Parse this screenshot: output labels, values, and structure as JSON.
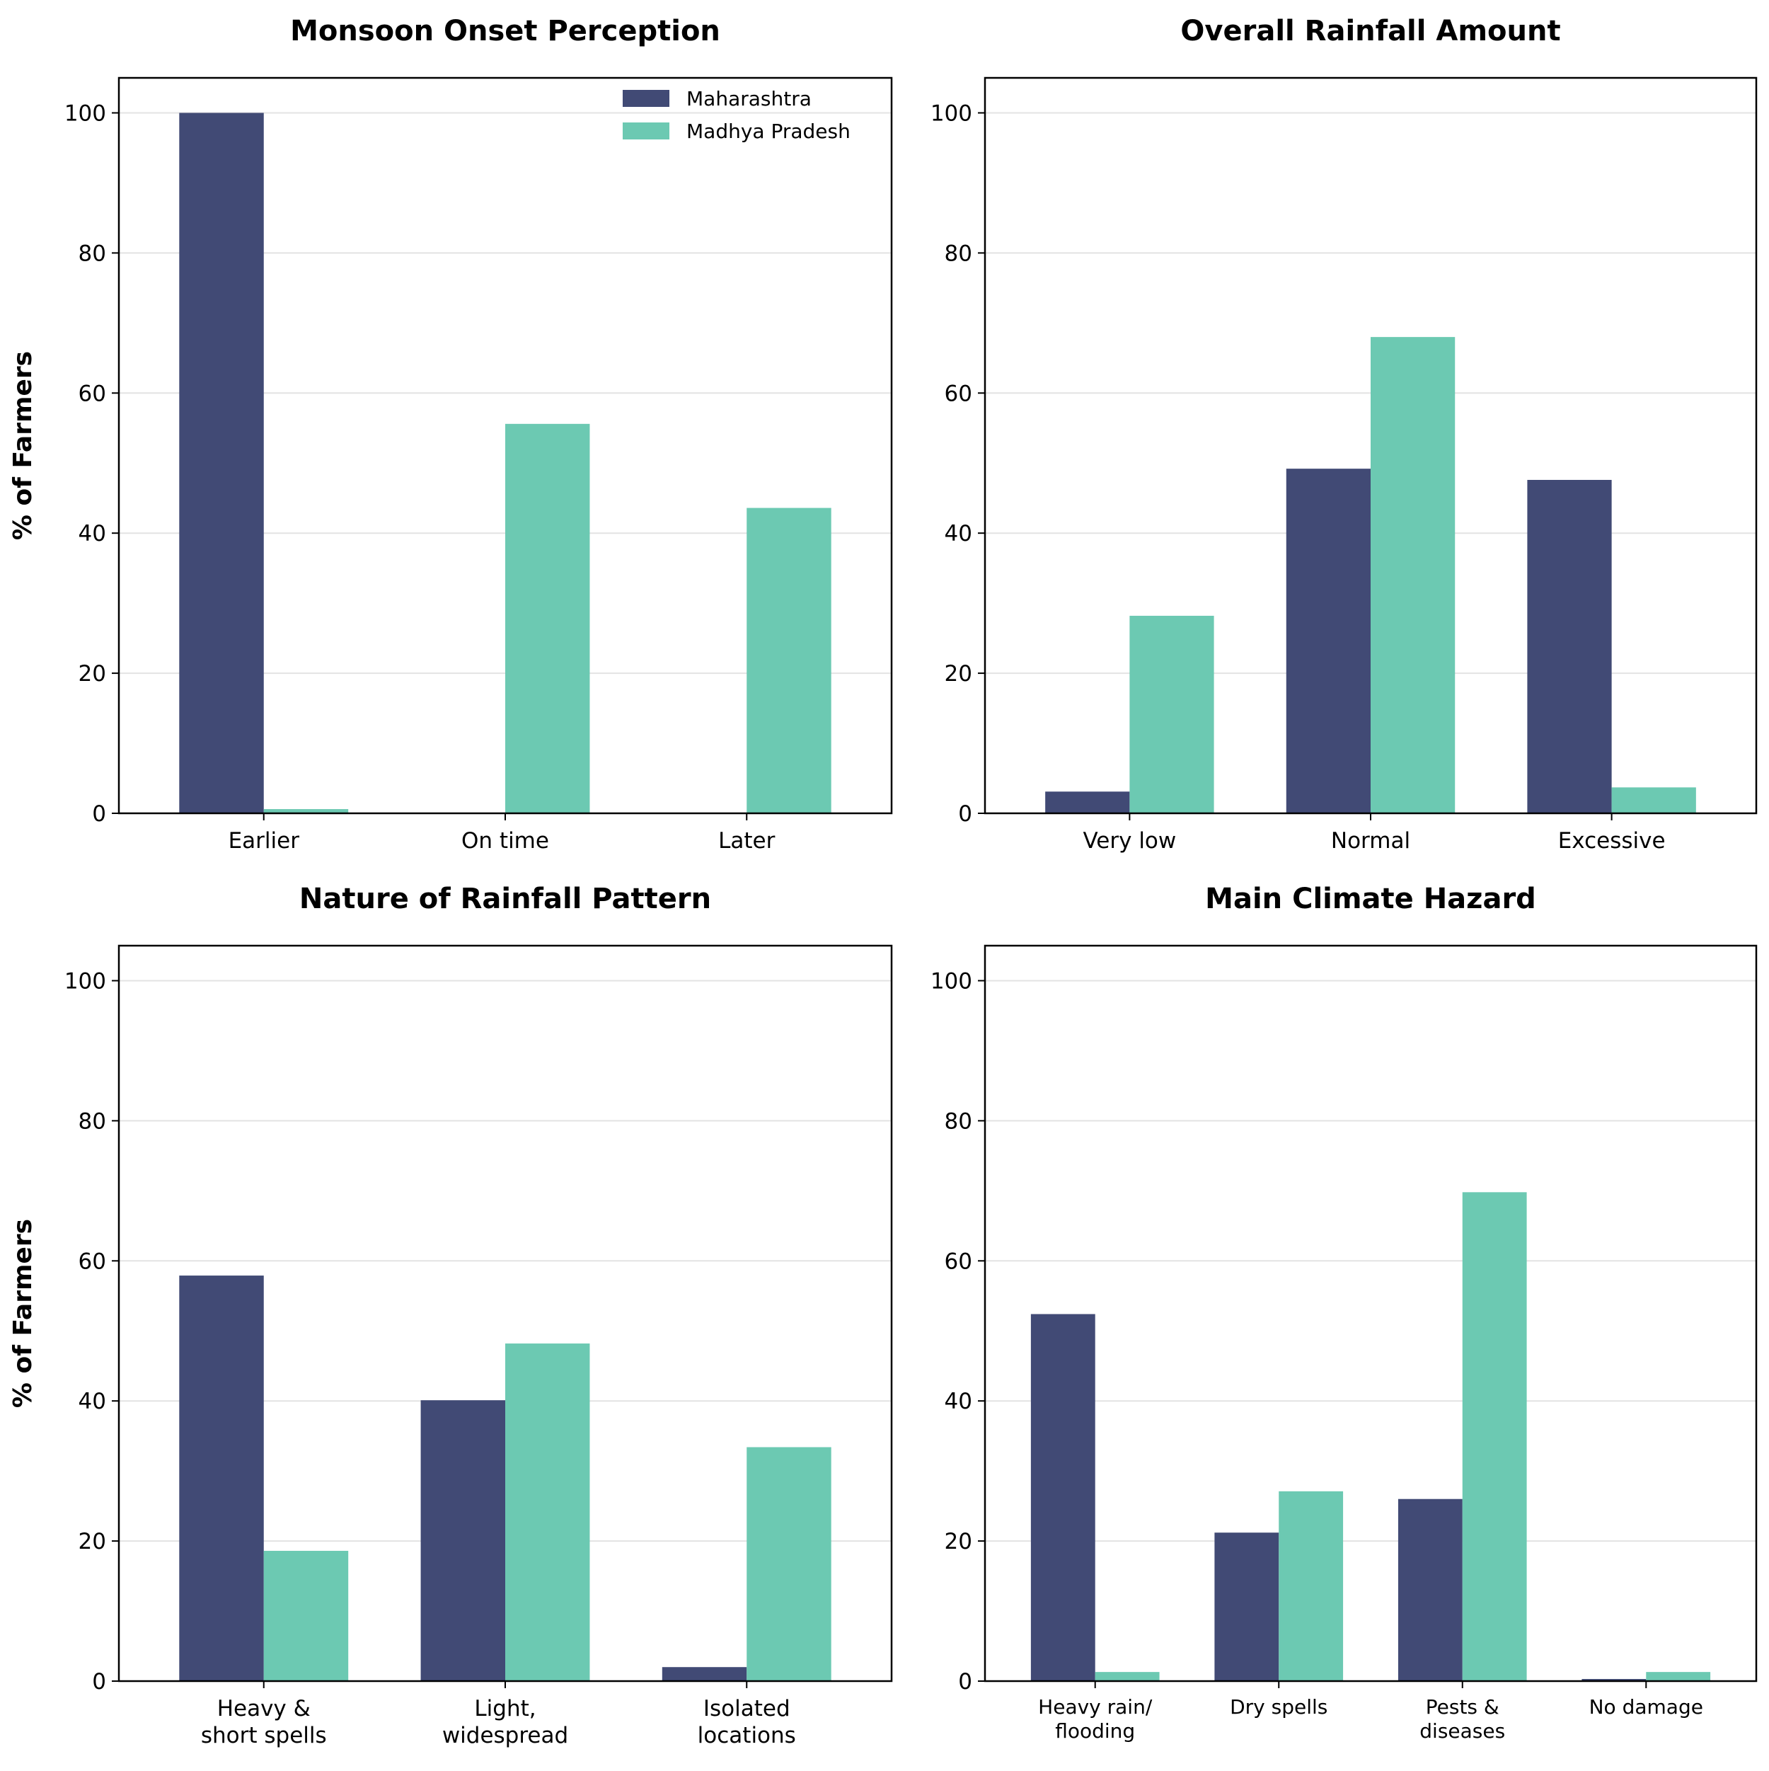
{
  "colors": {
    "Maharashtra": "#414a75",
    "Madhya Pradesh": "#6cc9b2",
    "grid": "#e3e3e3",
    "axis": "#000000"
  },
  "legend": {
    "location": "top-right",
    "entries": [
      "Maharashtra",
      "Madhya Pradesh"
    ]
  },
  "chart_data": [
    {
      "type": "bar",
      "title": "Monsoon Onset Perception",
      "ylabel": "% of Farmers",
      "xlabel": "",
      "ylim": [
        0,
        105
      ],
      "yticks": [
        0,
        20,
        40,
        60,
        80,
        100
      ],
      "grid": "y",
      "categories": [
        [
          "Earlier"
        ],
        [
          "On time"
        ],
        [
          "Later"
        ]
      ],
      "series": [
        {
          "name": "Maharashtra",
          "values": [
            100,
            0,
            0
          ]
        },
        {
          "name": "Madhya Pradesh",
          "values": [
            0.6,
            55.6,
            43.6
          ]
        }
      ]
    },
    {
      "type": "bar",
      "title": "Overall Rainfall Amount",
      "ylabel": "",
      "xlabel": "",
      "ylim": [
        0,
        105
      ],
      "yticks": [
        0,
        20,
        40,
        60,
        80,
        100
      ],
      "grid": "y",
      "categories": [
        [
          "Very low"
        ],
        [
          "Normal"
        ],
        [
          "Excessive"
        ]
      ],
      "series": [
        {
          "name": "Maharashtra",
          "values": [
            3.1,
            49.2,
            47.6
          ]
        },
        {
          "name": "Madhya Pradesh",
          "values": [
            28.2,
            68,
            3.7
          ]
        }
      ]
    },
    {
      "type": "bar",
      "title": "Nature of Rainfall Pattern",
      "ylabel": "% of Farmers",
      "xlabel": "",
      "ylim": [
        0,
        105
      ],
      "yticks": [
        0,
        20,
        40,
        60,
        80,
        100
      ],
      "grid": "y",
      "categories": [
        [
          "Heavy &",
          "short spells"
        ],
        [
          "Light,",
          "widespread"
        ],
        [
          "Isolated",
          "locations"
        ]
      ],
      "series": [
        {
          "name": "Maharashtra",
          "values": [
            57.9,
            40.1,
            2
          ]
        },
        {
          "name": "Madhya Pradesh",
          "values": [
            18.6,
            48.2,
            33.4
          ]
        }
      ]
    },
    {
      "type": "bar",
      "title": "Main Climate Hazard",
      "ylabel": "",
      "xlabel": "",
      "ylim": [
        0,
        105
      ],
      "yticks": [
        0,
        20,
        40,
        60,
        80,
        100
      ],
      "grid": "y",
      "categories": [
        [
          "Heavy rain/",
          "flooding"
        ],
        [
          "Dry spells"
        ],
        [
          "Pests &",
          "diseases"
        ],
        [
          "No damage"
        ]
      ],
      "series": [
        {
          "name": "Maharashtra",
          "values": [
            52.4,
            21.2,
            26,
            0.3
          ]
        },
        {
          "name": "Madhya Pradesh",
          "values": [
            1.3,
            27.1,
            69.8,
            1.3
          ]
        }
      ]
    }
  ]
}
